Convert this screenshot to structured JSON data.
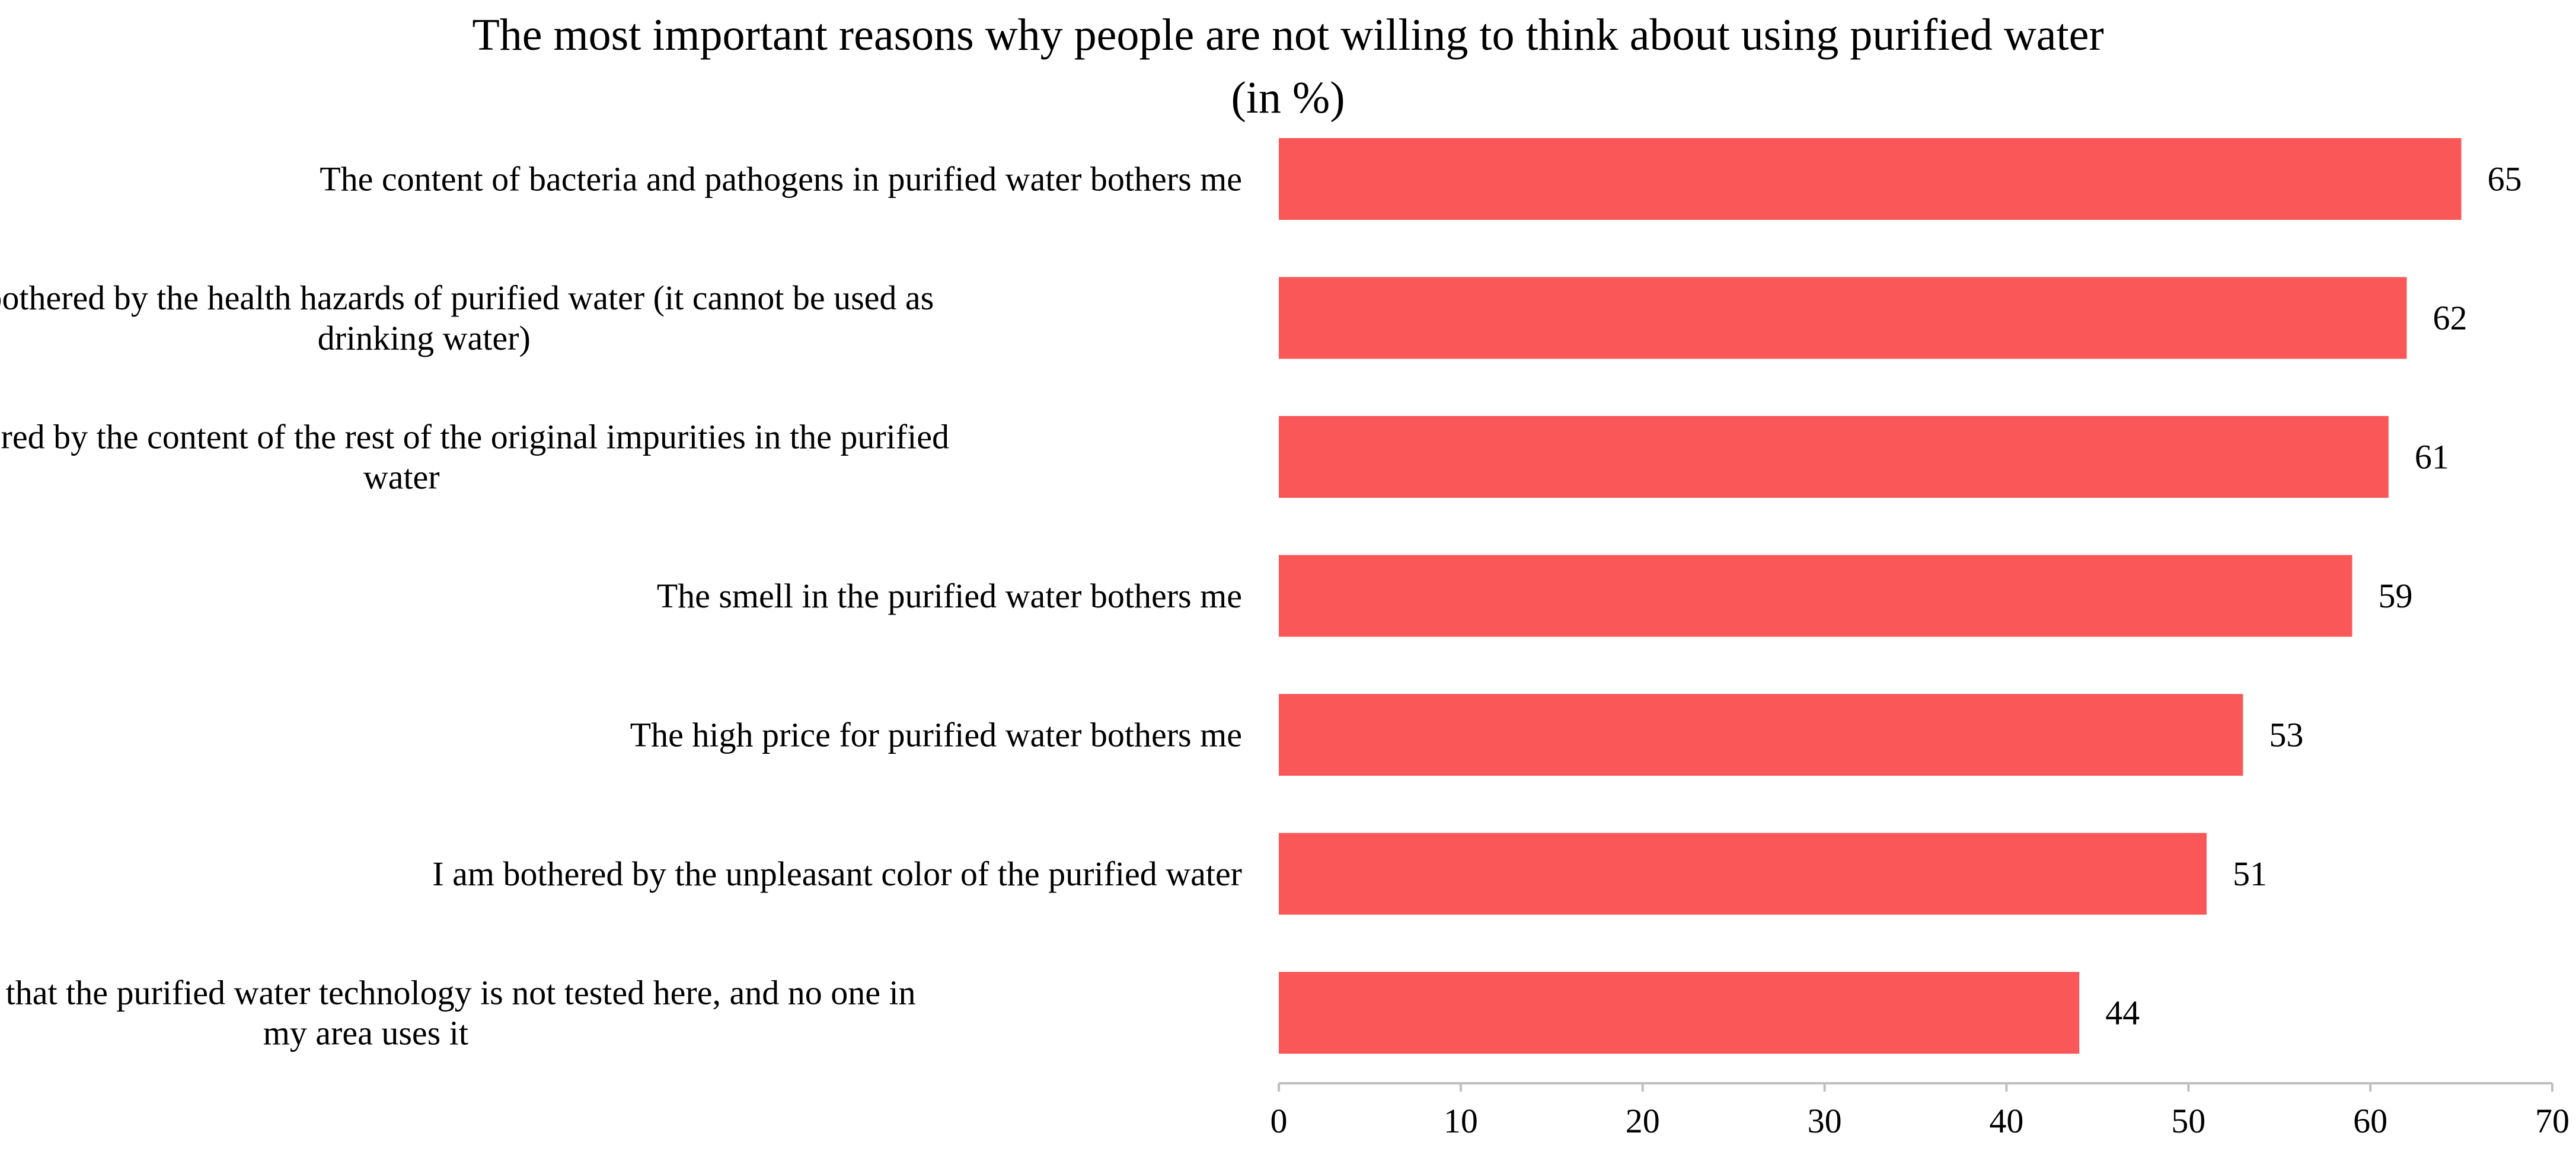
{
  "chart_data": {
    "type": "bar",
    "orientation": "horizontal",
    "title_lines": [
      "The most important reasons why people are not willing to think about using purified water",
      "(in %)"
    ],
    "categories": [
      [
        "The content of bacteria and pathogens in purified water bothers me"
      ],
      [
        "I am bothered by the health hazards of purified water (it cannot be used as",
        "drinking water)"
      ],
      [
        "I am bothered by the content of the rest of the original impurities in the purified",
        "water"
      ],
      [
        "The smell in the purified water bothers me"
      ],
      [
        "The high price for purified water bothers me"
      ],
      [
        "I am bothered by the unpleasant color of the purified water"
      ],
      [
        "It bothers me that the purified water technology is not tested here, and no one in",
        "my area uses it"
      ]
    ],
    "values": [
      65,
      62,
      61,
      59,
      53,
      51,
      44
    ],
    "xlim": [
      0,
      70
    ],
    "xticks": [
      0,
      10,
      20,
      30,
      40,
      50,
      60,
      70
    ],
    "xlabel": "",
    "ylabel": "",
    "bar_color": "#fa5858",
    "axis_color": "#bfbfbf",
    "grid": false,
    "legend": "none"
  }
}
